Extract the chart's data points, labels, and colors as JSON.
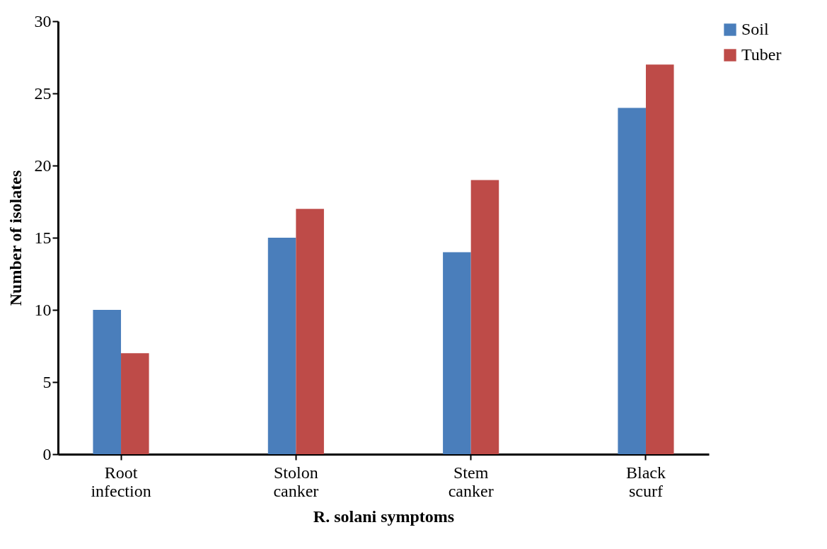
{
  "chart_data": {
    "type": "bar",
    "xlabel": "R. solani symptoms",
    "ylabel": "Number of isolates",
    "categories": [
      "Root infection",
      "Stolon canker",
      "Stem canker",
      "Black scurf"
    ],
    "series": [
      {
        "name": "Soil",
        "color": "#4a7ebb",
        "values": [
          10,
          15,
          14,
          24
        ]
      },
      {
        "name": "Tuber",
        "color": "#be4b48",
        "values": [
          7,
          17,
          19,
          27
        ]
      }
    ],
    "ylim": [
      0,
      30
    ],
    "yticks": [
      0,
      5,
      10,
      15,
      20,
      25,
      30
    ],
    "grid": false,
    "legend": "right"
  }
}
